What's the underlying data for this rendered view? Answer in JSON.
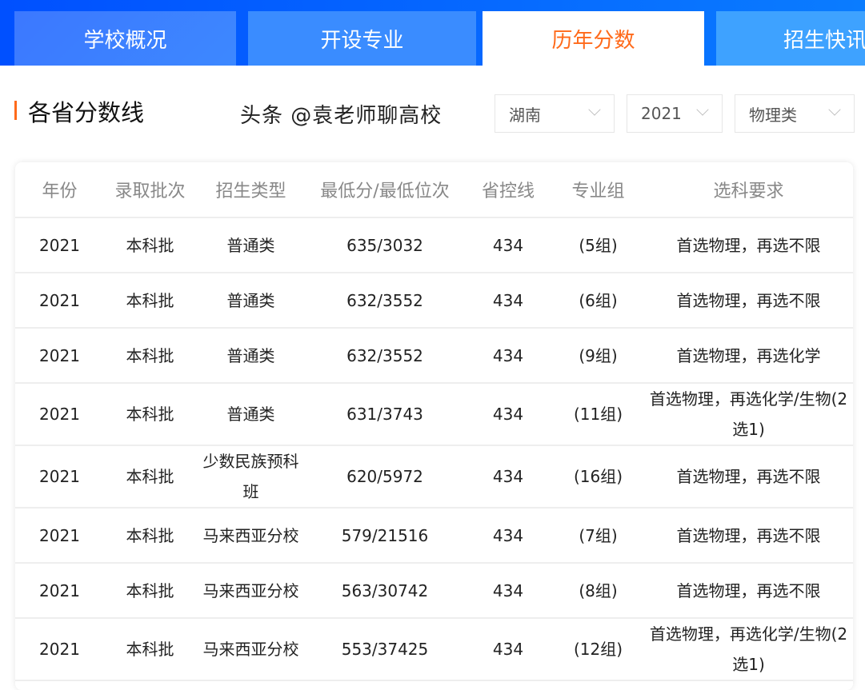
{
  "tabs": [
    {
      "label": "学校概况"
    },
    {
      "label": "开设专业"
    },
    {
      "label": "历年分数",
      "active": true
    },
    {
      "label": "招生快讯"
    }
  ],
  "section": {
    "title": "各省分数线"
  },
  "filters": {
    "province": "湖南",
    "year": "2021",
    "category": "物理类"
  },
  "colors": {
    "accent": "#ff6a1a",
    "brand": "#0a6cff"
  },
  "table": {
    "headers": [
      "年份",
      "录取批次",
      "招生类型",
      "最低分/最低位次",
      "省控线",
      "专业组",
      "选科要求"
    ],
    "rows": [
      [
        "2021",
        "本科批",
        "普通类",
        "635/3032",
        "434",
        "(5组)",
        "首选物理，再选不限"
      ],
      [
        "2021",
        "本科批",
        "普通类",
        "632/3552",
        "434",
        "(6组)",
        "首选物理，再选不限"
      ],
      [
        "2021",
        "本科批",
        "普通类",
        "632/3552",
        "434",
        "(9组)",
        "首选物理，再选化学"
      ],
      [
        "2021",
        "本科批",
        "普通类",
        "631/3743",
        "434",
        "(11组)",
        "首选物理，再选化学/生物(2选1)"
      ],
      [
        "2021",
        "本科批",
        "少数民族预科班",
        "620/5972",
        "434",
        "(16组)",
        "首选物理，再选不限"
      ],
      [
        "2021",
        "本科批",
        "马来西亚分校",
        "579/21516",
        "434",
        "(7组)",
        "首选物理，再选不限"
      ],
      [
        "2021",
        "本科批",
        "马来西亚分校",
        "563/30742",
        "434",
        "(8组)",
        "首选物理，再选不限"
      ],
      [
        "2021",
        "本科批",
        "马来西亚分校",
        "553/37425",
        "434",
        "(12组)",
        "首选物理，再选化学/生物(2选1)"
      ]
    ]
  },
  "watermark": "头条 @袁老师聊高校"
}
